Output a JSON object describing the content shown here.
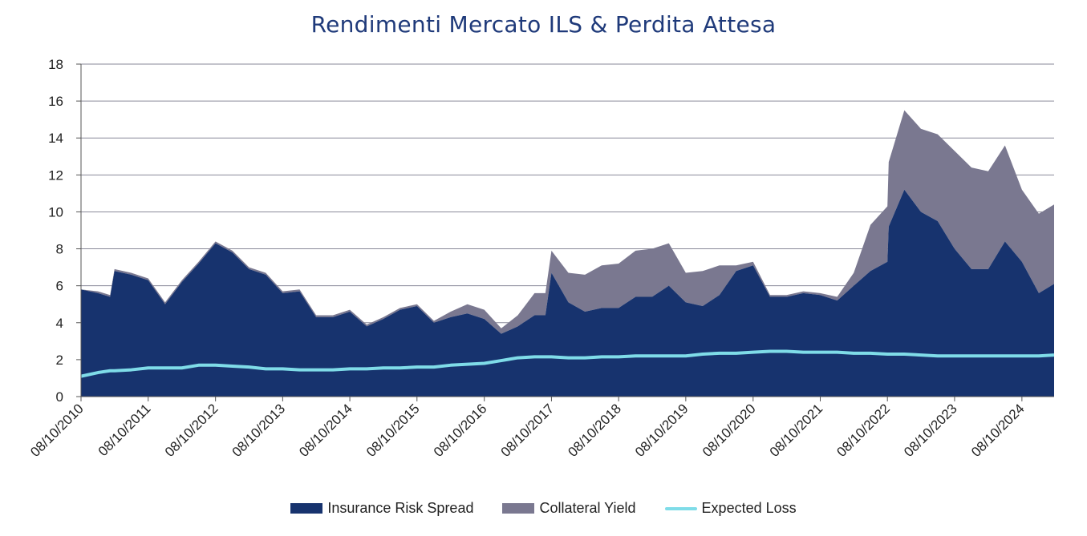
{
  "chart_data": {
    "type": "area",
    "title": "Rendimenti Mercato ILS & Perdita Attesa",
    "xlabel": "",
    "ylabel": "",
    "ylim": [
      0,
      18
    ],
    "xlim": [
      "2010-10-08",
      "2025-04-01"
    ],
    "yticks": [
      "0",
      "2",
      "4",
      "6",
      "8",
      "10",
      "12",
      "14",
      "16",
      "18"
    ],
    "xticks": [
      {
        "date": "2010-10-08",
        "label": "08/10/2010"
      },
      {
        "date": "2011-10-08",
        "label": "08/10/2011"
      },
      {
        "date": "2012-10-08",
        "label": "08/10/2012"
      },
      {
        "date": "2013-10-08",
        "label": "08/10/2013"
      },
      {
        "date": "2014-10-08",
        "label": "08/10/2014"
      },
      {
        "date": "2015-10-08",
        "label": "08/10/2015"
      },
      {
        "date": "2016-10-08",
        "label": "08/10/2016"
      },
      {
        "date": "2017-10-08",
        "label": "08/10/2017"
      },
      {
        "date": "2018-10-08",
        "label": "08/10/2018"
      },
      {
        "date": "2019-10-08",
        "label": "08/10/2019"
      },
      {
        "date": "2020-10-08",
        "label": "08/10/2020"
      },
      {
        "date": "2021-10-08",
        "label": "08/10/2021"
      },
      {
        "date": "2022-10-08",
        "label": "08/10/2022"
      },
      {
        "date": "2023-10-08",
        "label": "08/10/2023"
      },
      {
        "date": "2024-10-08",
        "label": "08/10/2024"
      }
    ],
    "grid": true,
    "legend_position": "bottom",
    "x": [
      "2010-10-08",
      "2011-01-08",
      "2011-03-15",
      "2011-04-08",
      "2011-07-08",
      "2011-10-08",
      "2012-01-08",
      "2012-04-08",
      "2012-07-08",
      "2012-10-08",
      "2013-01-08",
      "2013-04-08",
      "2013-07-08",
      "2013-10-08",
      "2014-01-08",
      "2014-04-08",
      "2014-07-08",
      "2014-10-08",
      "2015-01-08",
      "2015-04-08",
      "2015-07-08",
      "2015-10-08",
      "2016-01-08",
      "2016-04-08",
      "2016-07-08",
      "2016-10-08",
      "2017-01-08",
      "2017-04-08",
      "2017-07-08",
      "2017-09-05",
      "2017-10-08",
      "2018-01-08",
      "2018-04-08",
      "2018-07-08",
      "2018-10-08",
      "2019-01-08",
      "2019-04-08",
      "2019-07-08",
      "2019-10-08",
      "2020-01-08",
      "2020-04-08",
      "2020-07-08",
      "2020-10-08",
      "2021-01-08",
      "2021-04-08",
      "2021-07-08",
      "2021-10-08",
      "2022-01-08",
      "2022-04-08",
      "2022-07-08",
      "2022-10-08",
      "2022-10-15",
      "2023-01-08",
      "2023-04-08",
      "2023-07-08",
      "2023-10-08",
      "2024-01-08",
      "2024-04-08",
      "2024-07-08",
      "2024-10-08",
      "2025-01-08",
      "2025-04-01"
    ],
    "series": [
      {
        "name": "Insurance Risk Spread",
        "color": "#17336e",
        "values": [
          5.8,
          5.6,
          5.4,
          6.8,
          6.6,
          6.3,
          5.0,
          6.2,
          7.2,
          8.3,
          7.8,
          6.9,
          6.6,
          5.6,
          5.7,
          4.3,
          4.3,
          4.6,
          3.8,
          4.2,
          4.7,
          4.9,
          4.0,
          4.3,
          4.5,
          4.2,
          3.4,
          3.8,
          4.4,
          4.4,
          6.7,
          5.1,
          4.6,
          4.8,
          4.8,
          5.4,
          5.4,
          6.0,
          5.1,
          4.9,
          5.5,
          6.8,
          7.1,
          5.4,
          5.4,
          5.6,
          5.5,
          5.2,
          6.0,
          6.8,
          7.3,
          9.2,
          11.2,
          10.0,
          9.5,
          8.0,
          6.9,
          6.9,
          8.4,
          7.3,
          5.6,
          6.1
        ]
      },
      {
        "name": "Collateral Yield",
        "color": "#7a7890",
        "values": [
          0.0,
          0.1,
          0.1,
          0.1,
          0.1,
          0.1,
          0.1,
          0.1,
          0.1,
          0.1,
          0.1,
          0.1,
          0.1,
          0.1,
          0.1,
          0.1,
          0.1,
          0.1,
          0.1,
          0.1,
          0.1,
          0.1,
          0.1,
          0.3,
          0.5,
          0.5,
          0.3,
          0.6,
          1.2,
          1.2,
          1.2,
          1.6,
          2.0,
          2.3,
          2.4,
          2.5,
          2.6,
          2.3,
          1.6,
          1.9,
          1.6,
          0.3,
          0.2,
          0.1,
          0.1,
          0.1,
          0.1,
          0.2,
          0.7,
          2.5,
          3.0,
          3.5,
          4.3,
          4.5,
          4.7,
          5.3,
          5.5,
          5.3,
          5.2,
          3.9,
          4.3,
          4.3
        ]
      },
      {
        "name": "Expected Loss",
        "color": "#7fdce8",
        "values": [
          1.1,
          1.3,
          1.4,
          1.4,
          1.45,
          1.55,
          1.55,
          1.55,
          1.7,
          1.7,
          1.65,
          1.6,
          1.5,
          1.5,
          1.45,
          1.45,
          1.45,
          1.5,
          1.5,
          1.55,
          1.55,
          1.6,
          1.6,
          1.7,
          1.75,
          1.8,
          1.95,
          2.1,
          2.15,
          2.15,
          2.15,
          2.1,
          2.1,
          2.15,
          2.15,
          2.2,
          2.2,
          2.2,
          2.2,
          2.3,
          2.35,
          2.35,
          2.4,
          2.45,
          2.45,
          2.4,
          2.4,
          2.4,
          2.35,
          2.35,
          2.3,
          2.3,
          2.3,
          2.25,
          2.2,
          2.2,
          2.2,
          2.2,
          2.2,
          2.2,
          2.2,
          2.25
        ]
      }
    ]
  }
}
